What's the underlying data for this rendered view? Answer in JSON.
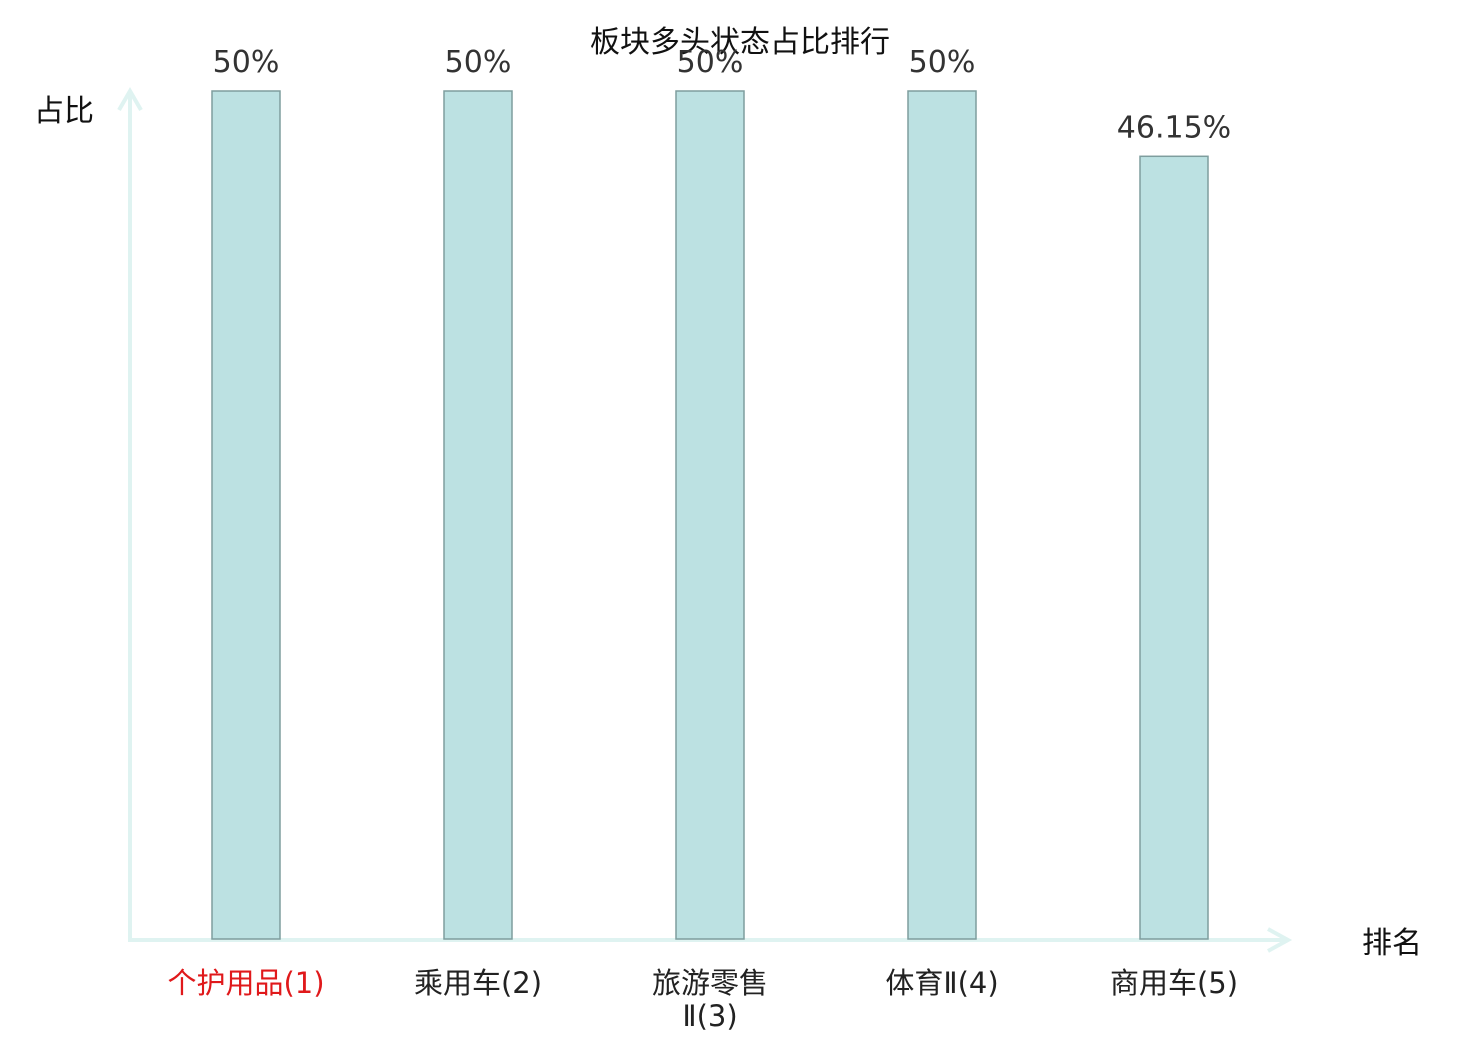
{
  "chart_data": {
    "type": "bar",
    "title": "板块多头状态占比排行",
    "xlabel": "排名",
    "ylabel": "占比",
    "categories": [
      "个护用品(1)",
      "乘用车(2)",
      "旅游零售Ⅱ(3)",
      "体育Ⅱ(4)",
      "商用车(5)"
    ],
    "category_lines": [
      [
        "个护用品(1)"
      ],
      [
        "乘用车(2)"
      ],
      [
        "旅游零售",
        "Ⅱ(3)"
      ],
      [
        "体育Ⅱ(4)"
      ],
      [
        "商用车(5)"
      ]
    ],
    "values": [
      50,
      50,
      50,
      50,
      46.15
    ],
    "value_labels": [
      "50%",
      "50%",
      "50%",
      "50%",
      "46.15%"
    ],
    "highlight_index": 0,
    "ylim": [
      0,
      50
    ],
    "grid": false,
    "colors": {
      "bar_fill": "#bce1e2",
      "bar_stroke": "#7e9d9e",
      "axis": "#dff3f1",
      "highlight_label": "#e0191b",
      "normal_label": "#222222"
    }
  }
}
